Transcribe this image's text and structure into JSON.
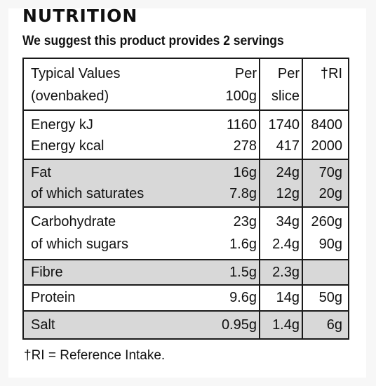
{
  "title": "NUTRITION",
  "subtitle": "We suggest this product provides 2 servings",
  "columns": {
    "label": [
      "Typical Values",
      "(ovenbaked)"
    ],
    "per100": [
      "Per",
      "100g"
    ],
    "perSlice": [
      "Per",
      "slice"
    ],
    "ri": [
      "†RI"
    ]
  },
  "rows": [
    {
      "label": "Energy kJ",
      "per100": "1160",
      "perSlice": "1740",
      "ri": "8400"
    },
    {
      "label": "Energy kcal",
      "per100": "278",
      "perSlice": "417",
      "ri": "2000"
    },
    {
      "label": "Fat",
      "per100": "16g",
      "perSlice": "24g",
      "ri": "70g"
    },
    {
      "label": "of which saturates",
      "per100": "7.8g",
      "perSlice": "12g",
      "ri": "20g"
    },
    {
      "label": "Carbohydrate",
      "per100": "23g",
      "perSlice": "34g",
      "ri": "260g"
    },
    {
      "label": "of which sugars",
      "per100": "1.6g",
      "perSlice": "2.4g",
      "ri": "90g"
    },
    {
      "label": "Fibre",
      "per100": "1.5g",
      "perSlice": "2.3g",
      "ri": ""
    },
    {
      "label": "Protein",
      "per100": "9.6g",
      "perSlice": "14g",
      "ri": "50g"
    },
    {
      "label": "Salt",
      "per100": "0.95g",
      "perSlice": "1.4g",
      "ri": "6g"
    }
  ],
  "footnote": "†RI = Reference Intake.",
  "colors": {
    "shade": "#d8d8d8",
    "rule": "#1a1a1a"
  }
}
